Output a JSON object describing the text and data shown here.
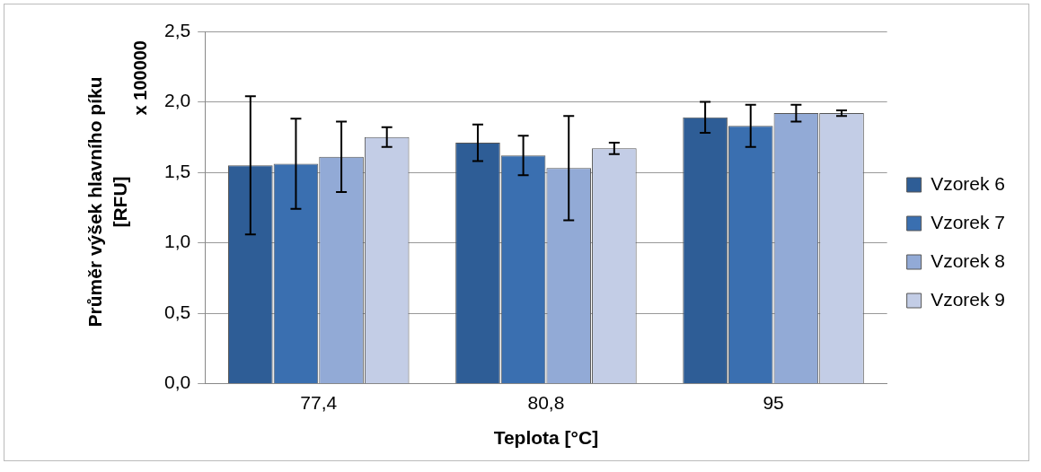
{
  "chart_data": {
    "type": "bar",
    "xlabel": "Teplota [°C]",
    "ylabel": "Průměr výšek hlavního píku [RFU]",
    "annotations": [
      "x 100000"
    ],
    "categories": [
      "77,4",
      "80,8",
      "95"
    ],
    "series": [
      {
        "name": "Vzorek 6",
        "color": "#2e5d96",
        "values": [
          1.55,
          1.71,
          1.89
        ],
        "errors": [
          0.49,
          0.13,
          0.11
        ]
      },
      {
        "name": "Vzorek 7",
        "color": "#3a6fb0",
        "values": [
          1.56,
          1.62,
          1.83
        ],
        "errors": [
          0.32,
          0.14,
          0.15
        ]
      },
      {
        "name": "Vzorek 8",
        "color": "#92aad6",
        "values": [
          1.61,
          1.53,
          1.92
        ],
        "errors": [
          0.25,
          0.37,
          0.06
        ]
      },
      {
        "name": "Vzorek 9",
        "color": "#c3cde6",
        "values": [
          1.75,
          1.67,
          1.92
        ],
        "errors": [
          0.07,
          0.04,
          0.02
        ]
      }
    ],
    "ylim": [
      0,
      2.5
    ],
    "yticks": [
      {
        "value": 0,
        "label": "0,0"
      },
      {
        "value": 0.5,
        "label": "0,5"
      },
      {
        "value": 1,
        "label": "1,0"
      },
      {
        "value": 1.5,
        "label": "1,5"
      },
      {
        "value": 2,
        "label": "2,0"
      },
      {
        "value": 2.5,
        "label": "2,5"
      }
    ],
    "grid": "y",
    "legend": "right"
  }
}
